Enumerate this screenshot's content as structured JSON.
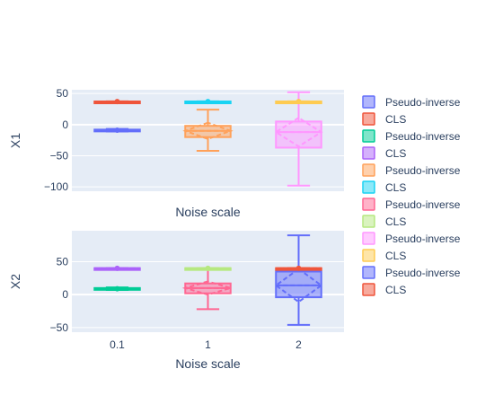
{
  "chart_data": {
    "type": "box",
    "legend_position": "right",
    "legend": [
      {
        "label": "Pseudo-inverse",
        "color": "#636efa"
      },
      {
        "label": "CLS",
        "color": "#ef553b"
      },
      {
        "label": "Pseudo-inverse",
        "color": "#00cc96"
      },
      {
        "label": "CLS",
        "color": "#ab63fa"
      },
      {
        "label": "Pseudo-inverse",
        "color": "#ffa15a"
      },
      {
        "label": "CLS",
        "color": "#19d3f3"
      },
      {
        "label": "Pseudo-inverse",
        "color": "#ff6692"
      },
      {
        "label": "CLS",
        "color": "#b6e880"
      },
      {
        "label": "Pseudo-inverse",
        "color": "#ff97ff"
      },
      {
        "label": "CLS",
        "color": "#fecb52"
      },
      {
        "label": "Pseudo-inverse",
        "color": "#636efa"
      },
      {
        "label": "CLS",
        "color": "#ef553b"
      }
    ],
    "subplots": [
      {
        "ylabel": "X1",
        "xlabel": "Noise scale",
        "ylim": [
          -107,
          56
        ],
        "yticks": [
          50,
          0,
          -50,
          -100
        ],
        "show_xticks": false,
        "boxes": [
          {
            "x": "0.1",
            "method": "Pseudo-inverse",
            "color": "#636efa",
            "min": -11,
            "q1": -10,
            "median": -9,
            "q3": -8,
            "max": -7,
            "mean": -9,
            "sd": 1
          },
          {
            "x": "0.1",
            "method": "CLS",
            "color": "#ef553b",
            "min": 36.5,
            "q1": 36.8,
            "median": 37,
            "q3": 37.2,
            "max": 37.5,
            "mean": 37,
            "sd": 0.3
          },
          {
            "x": "1",
            "method": "Pseudo-inverse",
            "color": "#ffa15a",
            "min": -42,
            "q1": -20,
            "median": -10,
            "q3": -2,
            "max": 24,
            "mean": -10,
            "sd": 13
          },
          {
            "x": "1",
            "method": "CLS",
            "color": "#19d3f3",
            "min": 36.5,
            "q1": 36.8,
            "median": 37,
            "q3": 37.2,
            "max": 37.5,
            "mean": 37,
            "sd": 0.3
          },
          {
            "x": "2",
            "method": "Pseudo-inverse",
            "color": "#ff97ff",
            "min": -98,
            "q1": -37,
            "median": -12,
            "q3": 5,
            "max": 52,
            "mean": -12,
            "sd": 23
          },
          {
            "x": "2",
            "method": "CLS",
            "color": "#fecb52",
            "min": 36.5,
            "q1": 36.8,
            "median": 37,
            "q3": 37.2,
            "max": 37.5,
            "mean": 37,
            "sd": 0.3
          }
        ]
      },
      {
        "ylabel": "X2",
        "xlabel": "Noise scale",
        "ylim": [
          -57,
          97
        ],
        "yticks": [
          50,
          0,
          -50
        ],
        "show_xticks": true,
        "boxes": [
          {
            "x": "0.1",
            "method": "Pseudo-inverse",
            "color": "#00cc96",
            "min": 7,
            "q1": 8,
            "median": 9,
            "q3": 10,
            "max": 11,
            "mean": 9,
            "sd": 1
          },
          {
            "x": "0.1",
            "method": "CLS",
            "color": "#ab63fa",
            "min": 39.6,
            "q1": 39.8,
            "median": 40,
            "q3": 40.2,
            "max": 40.4,
            "mean": 40,
            "sd": 0.2
          },
          {
            "x": "1",
            "method": "Pseudo-inverse",
            "color": "#ff6692",
            "min": -22,
            "q1": 2,
            "median": 10,
            "q3": 17,
            "max": 38,
            "mean": 10,
            "sd": 10
          },
          {
            "x": "1",
            "method": "CLS",
            "color": "#b6e880",
            "min": 39.6,
            "q1": 39.8,
            "median": 40,
            "q3": 40.2,
            "max": 40.4,
            "mean": 40,
            "sd": 0.2
          },
          {
            "x": "2",
            "method": "Pseudo-inverse",
            "color": "#636efa",
            "min": -46,
            "q1": -4,
            "median": 14,
            "q3": 35,
            "max": 90,
            "mean": 14,
            "sd": 25
          },
          {
            "x": "2",
            "method": "CLS",
            "color": "#ef553b",
            "min": 39.6,
            "q1": 39.8,
            "median": 40,
            "q3": 40.2,
            "max": 40.4,
            "mean": 40,
            "sd": 0.2
          }
        ]
      }
    ],
    "categories": [
      "0.1",
      "1",
      "2"
    ]
  }
}
